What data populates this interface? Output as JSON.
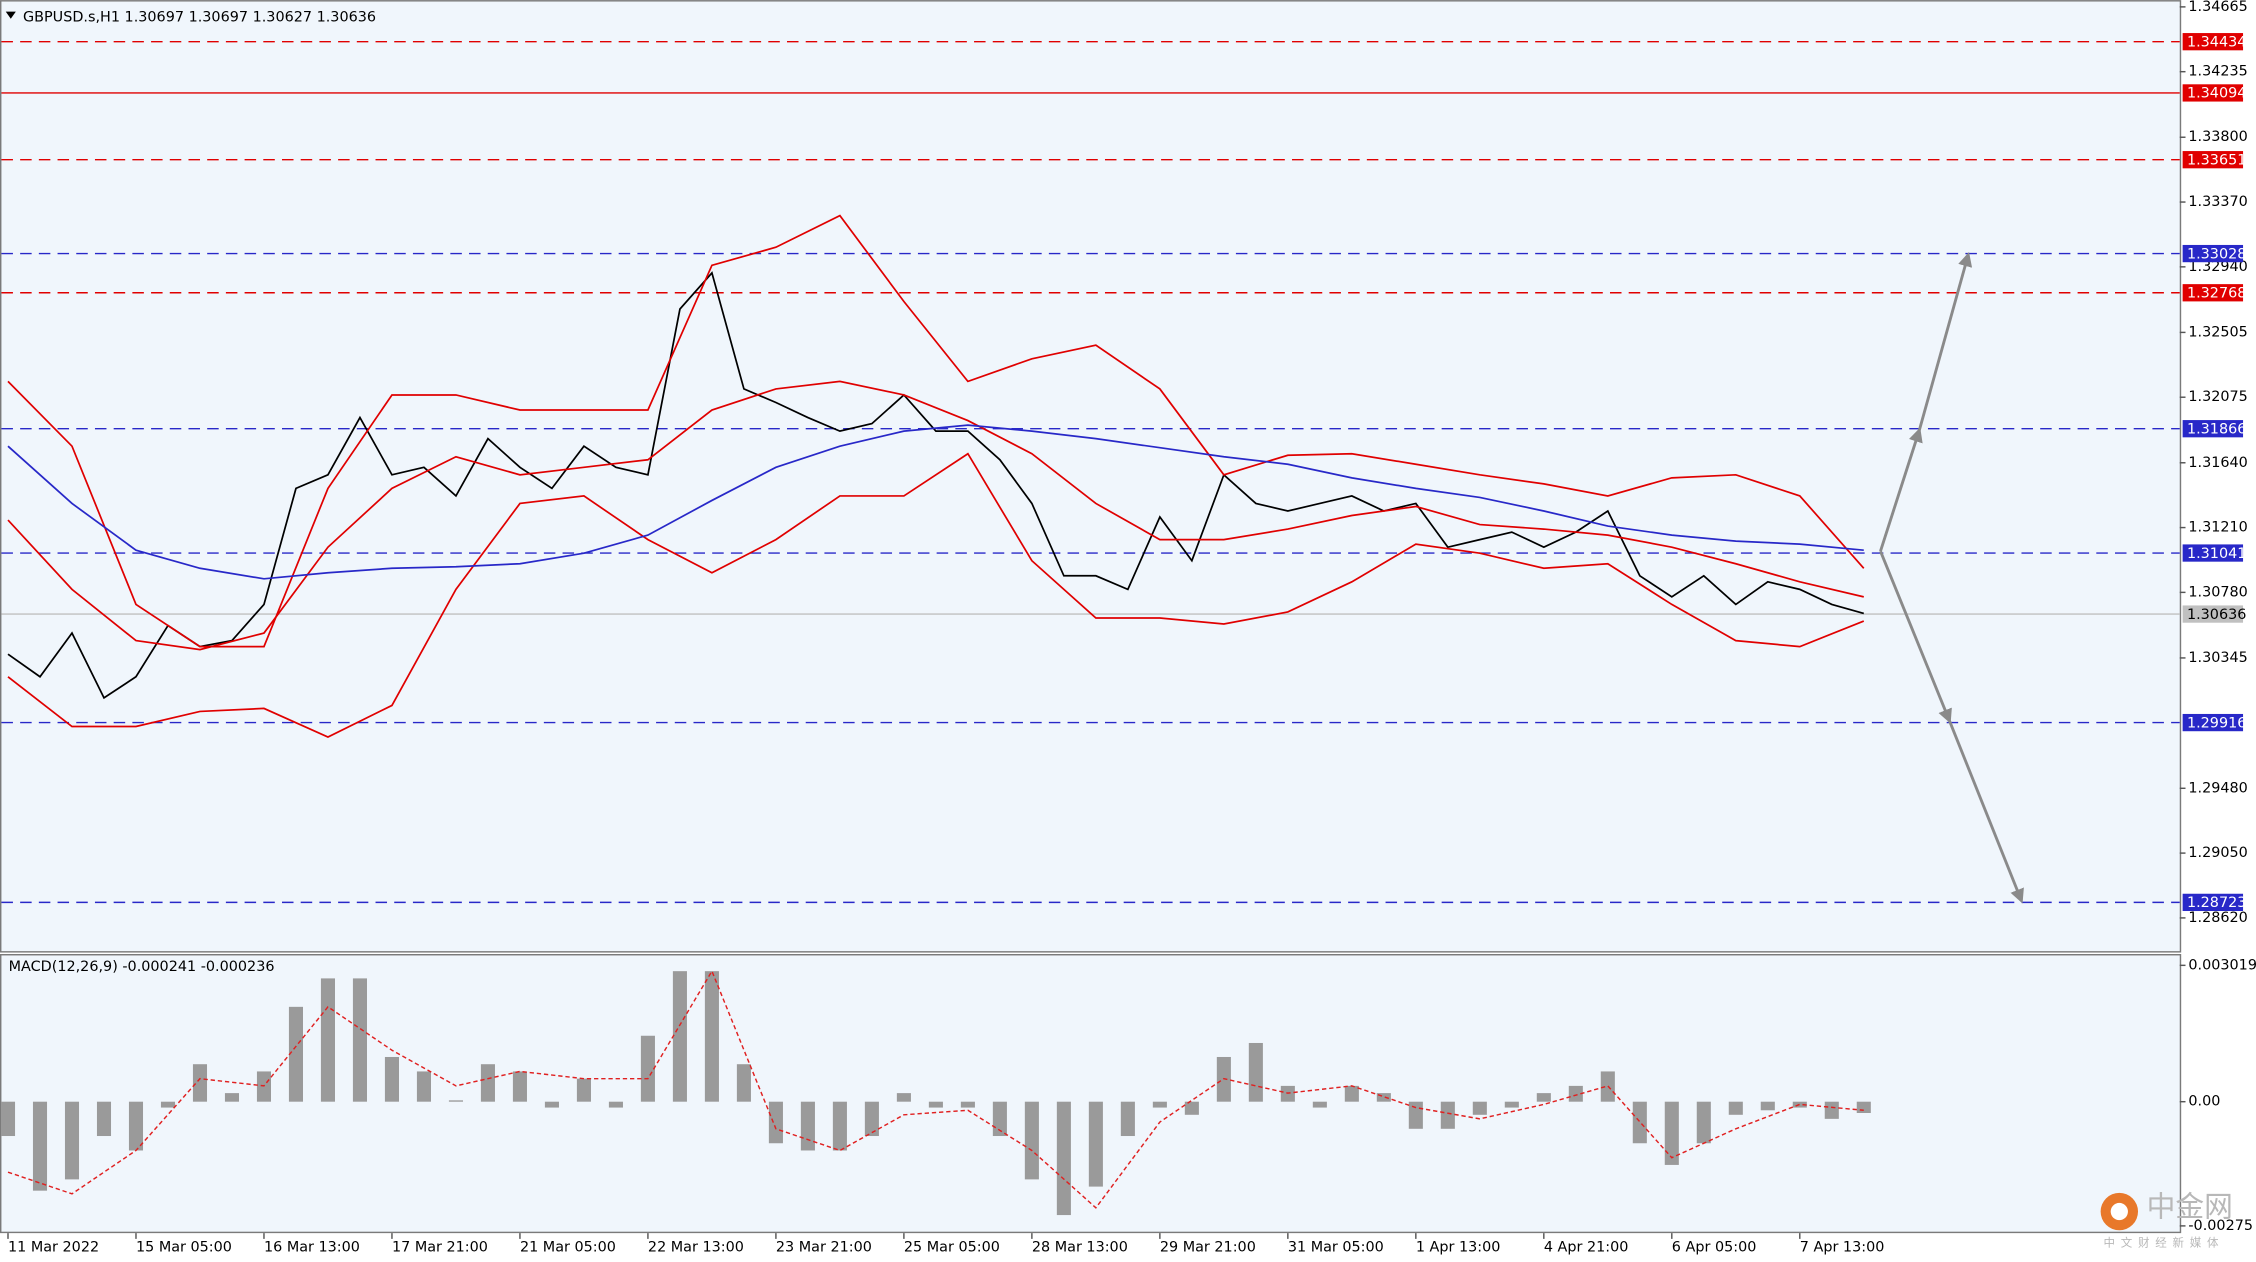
{
  "chart_data": [
    {
      "type": "line",
      "title": "GBPUSD.s,H1  1.30697 1.30697 1.30627 1.30636",
      "xlim": [
        -2,
        543
      ],
      "ylim": [
        1.2839,
        1.3471
      ],
      "yticks": [
        1.34665,
        1.34235,
        {
          "value": 1.338,
          "label": "1.33800"
        },
        {
          "value": 1.3337,
          "label": "1.33370"
        },
        {
          "value": 1.3294,
          "label": "1.32940"
        },
        1.32505,
        1.32075,
        {
          "value": 1.3164,
          "label": "1.31640"
        },
        {
          "value": 1.3121,
          "label": "1.31210"
        },
        {
          "value": 1.3078,
          "label": "1.30780"
        },
        1.30345,
        {
          "value": 1.2948,
          "label": "1.29480"
        },
        {
          "value": 1.2905,
          "label": "1.29050"
        },
        {
          "value": 1.2862,
          "label": "1.28620"
        }
      ],
      "series": [
        {
          "color": "#000000",
          "x": [
            0,
            8,
            16,
            24,
            32,
            40,
            48,
            56,
            64,
            72,
            80,
            88,
            96,
            104,
            112,
            120,
            128,
            136,
            144,
            152,
            160,
            168,
            176,
            184,
            192,
            200,
            208,
            216,
            224,
            232,
            240,
            248,
            256,
            264,
            272,
            280,
            288,
            296,
            304,
            312,
            320,
            328,
            336,
            344,
            352,
            360,
            368,
            376,
            384,
            392,
            400,
            408,
            416,
            424,
            432,
            440,
            448,
            456,
            464
          ],
          "values": [
            1.3037,
            1.3022,
            1.3051,
            1.3008,
            1.3022,
            1.3056,
            1.3042,
            1.3046,
            1.307,
            1.3147,
            1.3156,
            1.3194,
            1.3156,
            1.3161,
            1.3142,
            1.318,
            1.3161,
            1.3147,
            1.3175,
            1.3161,
            1.3156,
            1.3266,
            1.329,
            1.3213,
            1.3204,
            1.3194,
            1.3185,
            1.319,
            1.3209,
            1.3185,
            1.3185,
            1.3166,
            1.3137,
            1.3089,
            1.3089,
            1.308,
            1.3128,
            1.3099,
            1.3156,
            1.3137,
            1.3132,
            1.3137,
            1.3142,
            1.3132,
            1.3137,
            1.3108,
            1.3113,
            1.3118,
            1.3108,
            1.3118,
            1.3132,
            1.3089,
            1.3075,
            1.3089,
            1.307,
            1.3085,
            1.308,
            1.307,
            1.3064
          ]
        },
        {
          "color": "#e00000",
          "x": [
            0,
            16,
            32,
            48,
            64,
            80,
            96,
            112,
            128,
            144,
            160,
            176,
            192,
            208,
            224,
            240,
            256,
            272,
            288,
            304,
            320,
            336,
            352,
            368,
            384,
            400,
            416,
            432,
            448,
            464
          ],
          "values": [
            1.3218,
            1.3175,
            1.307,
            1.3042,
            1.3042,
            1.3147,
            1.3209,
            1.3209,
            1.3199,
            1.3199,
            1.3199,
            1.3295,
            1.3307,
            1.3328,
            1.3271,
            1.3218,
            1.3233,
            1.3242,
            1.3213,
            1.3156,
            1.3169,
            1.317,
            1.3163,
            1.3156,
            1.315,
            1.3142,
            1.3154,
            1.3156,
            1.3142,
            1.3094
          ]
        },
        {
          "color": "#e00000",
          "x": [
            0,
            16,
            32,
            48,
            64,
            80,
            96,
            112,
            128,
            144,
            160,
            176,
            192,
            208,
            224,
            240,
            256,
            272,
            288,
            304,
            320,
            336,
            352,
            368,
            384,
            400,
            416,
            432,
            448,
            464
          ],
          "values": [
            1.3126,
            1.308,
            1.3046,
            1.304,
            1.3051,
            1.3108,
            1.3147,
            1.3168,
            1.3156,
            1.3161,
            1.3166,
            1.3199,
            1.3213,
            1.3218,
            1.3209,
            1.3192,
            1.317,
            1.3137,
            1.3113,
            1.3113,
            1.312,
            1.3129,
            1.3135,
            1.3123,
            1.312,
            1.3116,
            1.3108,
            1.3097,
            1.3085,
            1.3075
          ]
        },
        {
          "color": "#e00000",
          "x": [
            0,
            16,
            32,
            48,
            64,
            80,
            96,
            112,
            128,
            144,
            160,
            176,
            192,
            208,
            224,
            240,
            256,
            272,
            288,
            304,
            320,
            336,
            352,
            368,
            384,
            400,
            416,
            432,
            448,
            464
          ],
          "values": [
            1.3022,
            1.2989,
            1.2989,
            1.2999,
            1.3001,
            1.2982,
            1.3003,
            1.308,
            1.3137,
            1.3142,
            1.3113,
            1.3091,
            1.3113,
            1.3142,
            1.3142,
            1.317,
            1.3099,
            1.3061,
            1.3061,
            1.3057,
            1.3065,
            1.3085,
            1.311,
            1.3104,
            1.3094,
            1.3097,
            1.307,
            1.3046,
            1.3042,
            1.3059
          ]
        },
        {
          "color": "#2828c8",
          "x": [
            0,
            16,
            32,
            48,
            64,
            80,
            96,
            112,
            128,
            144,
            160,
            176,
            192,
            208,
            224,
            240,
            256,
            272,
            288,
            304,
            320,
            336,
            352,
            368,
            384,
            400,
            416,
            432,
            448,
            464
          ],
          "values": [
            1.3175,
            1.3137,
            1.3106,
            1.3094,
            1.3087,
            1.3091,
            1.3094,
            1.3095,
            1.3097,
            1.3104,
            1.3116,
            1.3139,
            1.3161,
            1.3175,
            1.3185,
            1.3189,
            1.3185,
            1.318,
            1.3174,
            1.3168,
            1.3163,
            1.3154,
            1.3147,
            1.3141,
            1.3132,
            1.3122,
            1.3116,
            1.3112,
            1.311,
            1.3106
          ]
        }
      ],
      "levels": [
        {
          "value": 1.34434,
          "color": "#e00000",
          "dash": true
        },
        {
          "value": 1.34094,
          "color": "#e00000",
          "dash": false
        },
        {
          "value": 1.33651,
          "color": "#e00000",
          "dash": true
        },
        {
          "value": 1.33028,
          "color": "#2828c8",
          "dash": true
        },
        {
          "value": 1.32768,
          "color": "#e00000",
          "dash": true
        },
        {
          "value": 1.31866,
          "color": "#2828c8",
          "dash": true
        },
        {
          "value": 1.31041,
          "color": "#2828c8",
          "dash": true
        },
        {
          "value": 1.30636,
          "color": "#c0c0c0",
          "dash": false
        },
        {
          "value": 1.29916,
          "color": "#2828c8",
          "dash": true
        },
        {
          "value": 1.28723,
          "color": "#2828c8",
          "dash": true
        }
      ]
    },
    {
      "type": "bar",
      "title": "MACD(12,26,9) -0.000241 -0.000236",
      "xlim": [
        -2,
        543
      ],
      "ylim": [
        -0.00291,
        0.00327
      ],
      "yticks": [
        0.003019,
        {
          "value": 0,
          "label": "0.00"
        },
        -0.00275
      ],
      "xticks": [
        {
          "value": 0,
          "label": "11 Mar 2022"
        },
        {
          "value": 32,
          "label": "15 Mar 05:00"
        },
        {
          "value": 64,
          "label": "16 Mar 13:00"
        },
        {
          "value": 96,
          "label": "17 Mar 21:00"
        },
        {
          "value": 128,
          "label": "21 Mar 05:00"
        },
        {
          "value": 160,
          "label": "22 Mar 13:00"
        },
        {
          "value": 192,
          "label": "23 Mar 21:00"
        },
        {
          "value": 224,
          "label": "25 Mar 05:00"
        },
        {
          "value": 256,
          "label": "28 Mar 13:00"
        },
        {
          "value": 288,
          "label": "29 Mar 21:00"
        },
        {
          "value": 320,
          "label": "31 Mar 05:00"
        },
        {
          "value": 352,
          "label": "1 Apr 13:00"
        },
        {
          "value": 384,
          "label": "4 Apr 21:00"
        },
        {
          "value": 416,
          "label": "6 Apr 05:00"
        },
        {
          "value": 448,
          "label": "7 Apr 13:00"
        }
      ],
      "series": [
        {
          "type": "bar",
          "color": "#9a9a9a",
          "x": [
            0,
            8,
            16,
            24,
            32,
            40,
            48,
            56,
            64,
            72,
            80,
            88,
            96,
            104,
            112,
            120,
            128,
            136,
            144,
            152,
            160,
            168,
            176,
            184,
            192,
            200,
            208,
            216,
            224,
            232,
            240,
            248,
            256,
            264,
            272,
            280,
            288,
            296,
            304,
            312,
            320,
            328,
            336,
            344,
            352,
            360,
            368,
            376,
            384,
            392,
            400,
            408,
            416,
            424,
            432,
            440,
            448,
            456,
            464
          ],
          "values": [
            -0.00076,
            -0.00197,
            -0.00172,
            -0.00076,
            -0.00108,
            -0.00013,
            0.00083,
            0.00019,
            0.00067,
            0.0021,
            0.00273,
            0.00273,
            0.00099,
            0.00067,
            3e-05,
            0.00083,
            0.00067,
            -0.00013,
            0.00051,
            -0.00013,
            0.00146,
            0.00289,
            0.00289,
            0.00083,
            -0.00092,
            -0.00108,
            -0.00108,
            -0.00076,
            0.00019,
            -0.00013,
            -0.00013,
            -0.00076,
            -0.00172,
            -0.00251,
            -0.00188,
            -0.00076,
            -0.00013,
            -0.00029,
            0.00099,
            0.0013,
            0.00035,
            -0.00013,
            0.00035,
            0.00019,
            -0.0006,
            -0.0006,
            -0.00029,
            -0.00013,
            0.00019,
            0.00035,
            0.00067,
            -0.00092,
            -0.0014,
            -0.00092,
            -0.00029,
            -0.00019,
            -0.00013,
            -0.00038,
            -0.00025
          ]
        },
        {
          "type": "line",
          "color": "#e02020",
          "dash": true,
          "x": [
            0,
            16,
            32,
            48,
            64,
            80,
            96,
            112,
            128,
            144,
            160,
            176,
            192,
            208,
            224,
            240,
            256,
            272,
            288,
            304,
            320,
            336,
            352,
            368,
            384,
            400,
            416,
            432,
            448,
            464
          ],
          "values": [
            -0.00156,
            -0.00204,
            -0.00108,
            0.00051,
            0.00035,
            0.0021,
            0.00114,
            0.00035,
            0.00067,
            0.00051,
            0.00051,
            0.00289,
            -0.0006,
            -0.00108,
            -0.00029,
            -0.00019,
            -0.00108,
            -0.00235,
            -0.00045,
            0.00051,
            0.00019,
            0.00035,
            -0.00013,
            -0.00038,
            -6e-05,
            0.00035,
            -0.00124,
            -0.0006,
            -6e-05,
            -0.00019
          ]
        }
      ]
    }
  ],
  "watermark": {
    "logo": "中金网",
    "tagline": "中文财经新媒体"
  }
}
